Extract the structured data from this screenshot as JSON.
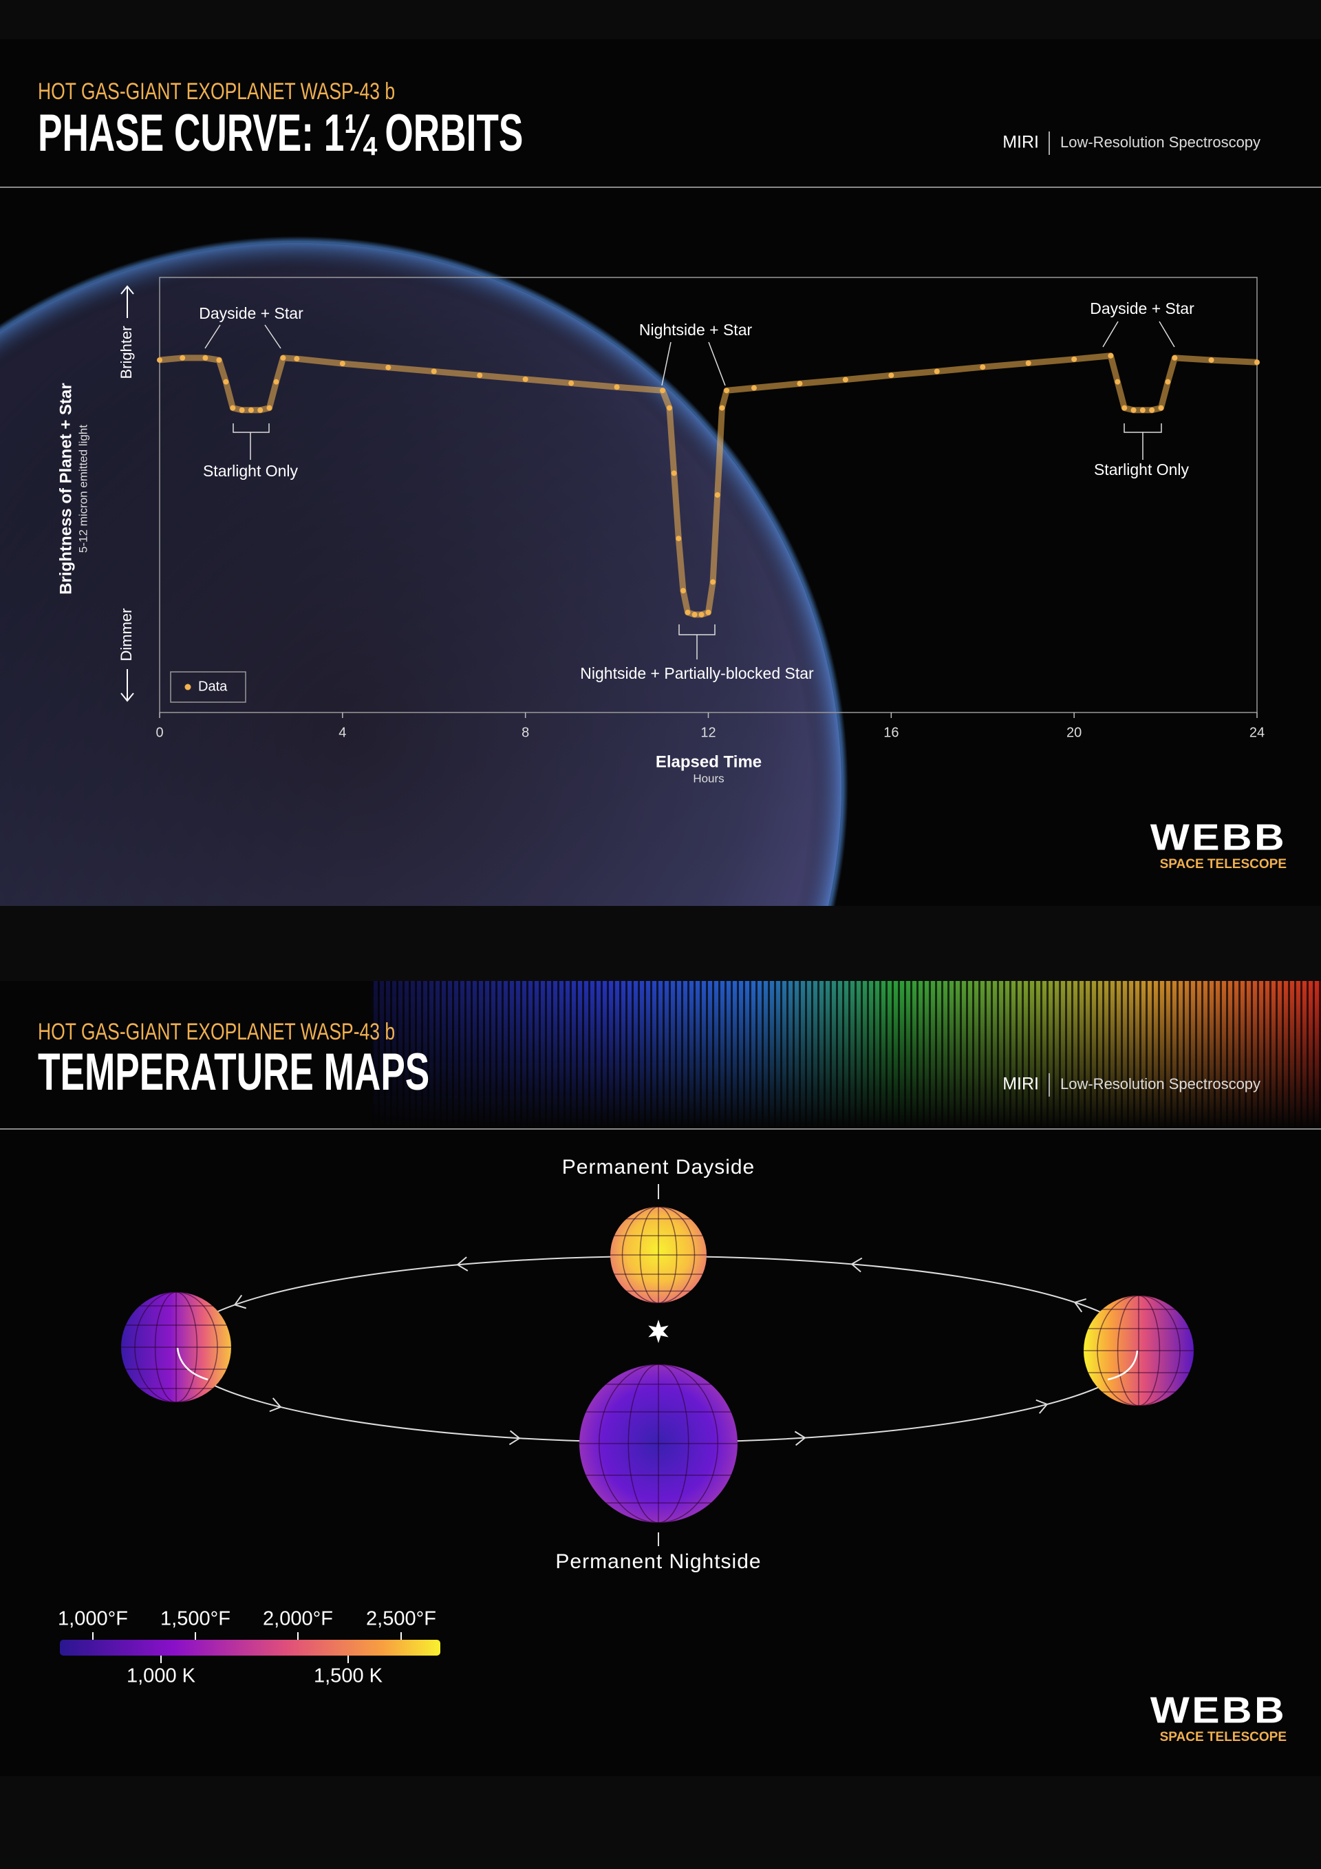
{
  "phase_panel": {
    "subtitle": "HOT GAS-GIANT EXOPLANET WASP-43 b",
    "title": "PHASE CURVE: 1¼ ORBITS",
    "instrument": "MIRI",
    "mode": "Low-Resolution Spectroscopy",
    "logo": "WEBB",
    "logo_tagline": "SPACE TELESCOPE"
  },
  "chart_data": {
    "type": "scatter",
    "x_label": "Elapsed Time",
    "x_sublabel": "Hours",
    "y_label": "Brightness of Planet + Star",
    "y_sublabel": "5-12 micron emitted light",
    "y_top_label": "Brighter",
    "y_bottom_label": "Dimmer",
    "x": [
      0,
      0.5,
      1.0,
      1.3,
      1.45,
      1.6,
      1.8,
      2.0,
      2.2,
      2.4,
      2.55,
      2.7,
      3,
      4,
      5,
      6,
      7,
      8,
      9,
      10,
      11,
      11.15,
      11.25,
      11.35,
      11.45,
      11.55,
      11.7,
      11.85,
      12.0,
      12.1,
      12.2,
      12.3,
      12.4,
      13,
      14,
      15,
      16,
      17,
      18,
      19,
      20,
      20.8,
      20.95,
      21.1,
      21.3,
      21.5,
      21.7,
      21.9,
      22.05,
      22.2,
      23,
      24
    ],
    "series": [
      {
        "name": "Data",
        "color": "#f2b350",
        "values": [
          81,
          81.5,
          81.5,
          81,
          76,
          70,
          69.5,
          69.5,
          69.5,
          70,
          76,
          81.5,
          81.3,
          80.2,
          79.3,
          78.4,
          77.5,
          76.6,
          75.7,
          74.8,
          74,
          70,
          55,
          40,
          28,
          23,
          22.5,
          22.5,
          23,
          30,
          50,
          70,
          74,
          74.6,
          75.6,
          76.5,
          77.5,
          78.4,
          79.4,
          80.3,
          81.2,
          82,
          76,
          70,
          69.5,
          69.5,
          69.5,
          70,
          76,
          81.5,
          81,
          80.5
        ]
      }
    ],
    "xlim": [
      0,
      24
    ],
    "xticks": [
      0,
      4,
      8,
      12,
      16,
      20,
      24
    ],
    "ylim": [
      0,
      100
    ],
    "legend": "lower left",
    "annotations": [
      "Dayside + Star",
      "Starlight Only",
      "Nightside + Star",
      "Nightside + Partially-blocked Star",
      "Dayside + Star",
      "Starlight Only"
    ]
  },
  "maps_panel": {
    "subtitle": "HOT GAS-GIANT EXOPLANET WASP-43 b",
    "title": "TEMPERATURE MAPS",
    "instrument": "MIRI",
    "mode": "Low-Resolution Spectroscopy",
    "dayside_label": "Permanent Dayside",
    "nightside_label": "Permanent Nightside",
    "colorbar_fahrenheit": [
      "1,000°F",
      "1,500°F",
      "2,000°F",
      "2,500°F"
    ],
    "colorbar_kelvin": [
      "1,000 K",
      "1,500 K"
    ],
    "logo": "WEBB",
    "logo_tagline": "SPACE TELESCOPE"
  }
}
